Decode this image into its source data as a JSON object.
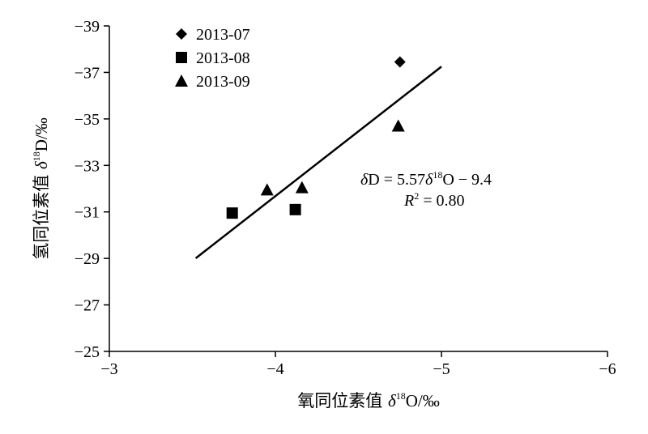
{
  "chart_data": {
    "type": "scatter",
    "xlabel_prefix": "氧同位素值 ",
    "xlabel_sym": "δ",
    "xlabel_sup": "18",
    "xlabel_suffix": "O/‰",
    "ylabel_prefix": "氢同位素值 ",
    "ylabel_sym": "δ",
    "ylabel_sup": "18",
    "ylabel_suffix": "D/‰",
    "xlim": [
      -3,
      -6
    ],
    "ylim": [
      -25,
      -39
    ],
    "x_ticks": [
      -3,
      -4,
      -5,
      -6
    ],
    "y_ticks": [
      -39,
      -37,
      -35,
      -33,
      -31,
      -29,
      -27,
      -25
    ],
    "x_tick_labels": [
      "−3",
      "−4",
      "−5",
      "−6"
    ],
    "y_tick_labels": [
      "−39",
      "−37",
      "−35",
      "−33",
      "−31",
      "−29",
      "−27",
      "−25"
    ],
    "legend_position": "top-left",
    "series": [
      {
        "name": "2013-07",
        "marker": "diamond",
        "points": [
          [
            -4.75,
            -37.45
          ]
        ]
      },
      {
        "name": "2013-08",
        "marker": "square",
        "points": [
          [
            -3.74,
            -30.95
          ],
          [
            -4.12,
            -31.1
          ]
        ]
      },
      {
        "name": "2013-09",
        "marker": "triangle",
        "points": [
          [
            -3.95,
            -31.95
          ],
          [
            -4.16,
            -32.05
          ],
          [
            -4.74,
            -34.7
          ]
        ]
      }
    ],
    "trendline": {
      "slope": 5.57,
      "intercept": -9.4,
      "x_range": [
        -3.52,
        -5.0
      ]
    },
    "equation": {
      "line1_sym": "δ",
      "line1_a": "D = 5.57",
      "line1_sym2": "δ",
      "line1_sup": "18",
      "line1_b": "O − 9.4",
      "line2_r": "R",
      "line2_sup": "2",
      "line2_val": " = 0.80"
    }
  }
}
